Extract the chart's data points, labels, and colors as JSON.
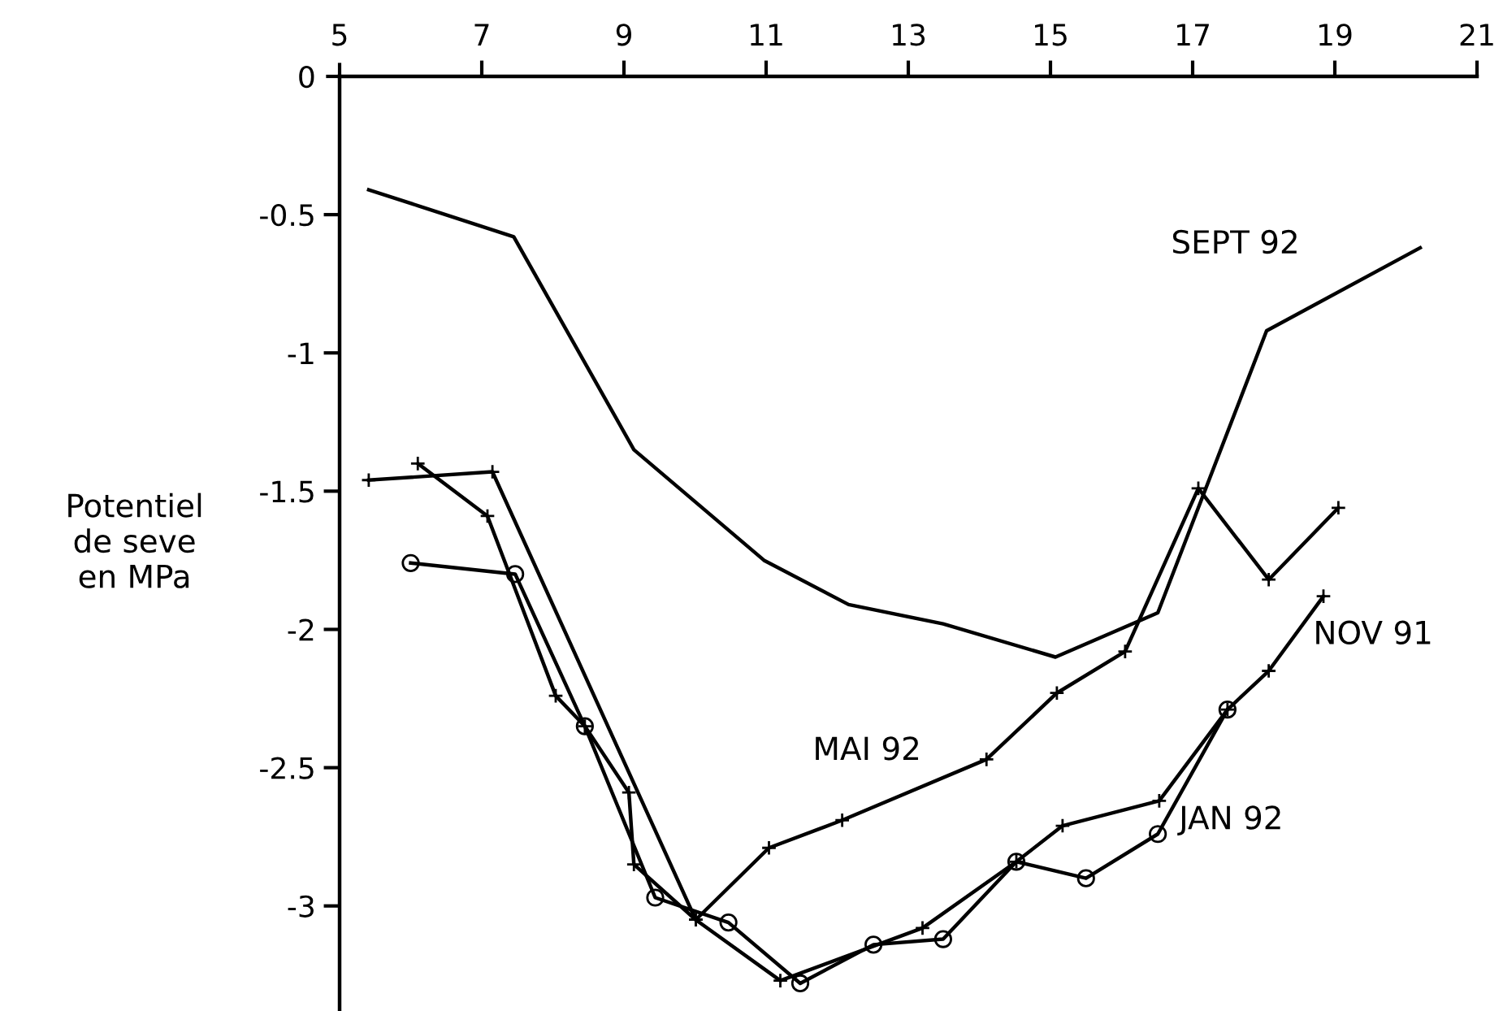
{
  "chart_data": {
    "type": "line",
    "ylabel": "Potentiel\nde seve\nen MPa",
    "xlim": [
      5,
      21
    ],
    "xticks": [
      5,
      7,
      9,
      11,
      13,
      15,
      17,
      19,
      21
    ],
    "ylim": [
      -3.38,
      0
    ],
    "yticks": [
      0,
      -0.5,
      -1,
      -1.5,
      -2,
      -2.5,
      -3
    ],
    "grid": false,
    "line_style": "solid",
    "series": [
      {
        "name": "SEPT 92",
        "color": "#000000",
        "marker": "none",
        "x": [
          5.41,
          7.45,
          9.14,
          10.97,
          12.16,
          13.49,
          15.07,
          16.51,
          18.04,
          20.2
        ],
        "values": [
          -0.41,
          -0.58,
          -1.35,
          -1.75,
          -1.91,
          -1.98,
          -2.1,
          -1.94,
          -0.92,
          -0.62
        ]
      },
      {
        "name": "MAI 92",
        "color": "#000000",
        "marker": "cross",
        "x": [
          5.41,
          7.15,
          10.01,
          11.04,
          12.07,
          14.1,
          15.09,
          16.05,
          17.08,
          18.07,
          19.05
        ],
        "values": [
          -1.46,
          -1.43,
          -3.05,
          -2.79,
          -2.69,
          -2.47,
          -2.23,
          -2.08,
          -1.49,
          -1.82,
          -1.56
        ]
      },
      {
        "name": "NOV 91",
        "color": "#000000",
        "marker": "cross",
        "x": [
          6.1,
          7.08,
          8.04,
          8.45,
          9.07,
          9.14,
          10.01,
          11.2,
          13.2,
          14.52,
          15.17,
          16.53,
          17.49,
          18.07,
          18.84
        ],
        "values": [
          -1.4,
          -1.59,
          -2.24,
          -2.35,
          -2.59,
          -2.85,
          -3.05,
          -3.27,
          -3.08,
          -2.84,
          -2.71,
          -2.62,
          -2.29,
          -2.15,
          -1.88
        ]
      },
      {
        "name": "JAN 92",
        "color": "#000000",
        "marker": "circle",
        "x": [
          6.0,
          7.47,
          8.45,
          9.44,
          10.47,
          11.48,
          12.51,
          13.49,
          14.52,
          15.5,
          16.51,
          17.49
        ],
        "values": [
          -1.76,
          -1.8,
          -2.35,
          -2.97,
          -3.06,
          -3.28,
          -3.14,
          -3.12,
          -2.84,
          -2.9,
          -2.74,
          -2.29
        ]
      }
    ]
  }
}
